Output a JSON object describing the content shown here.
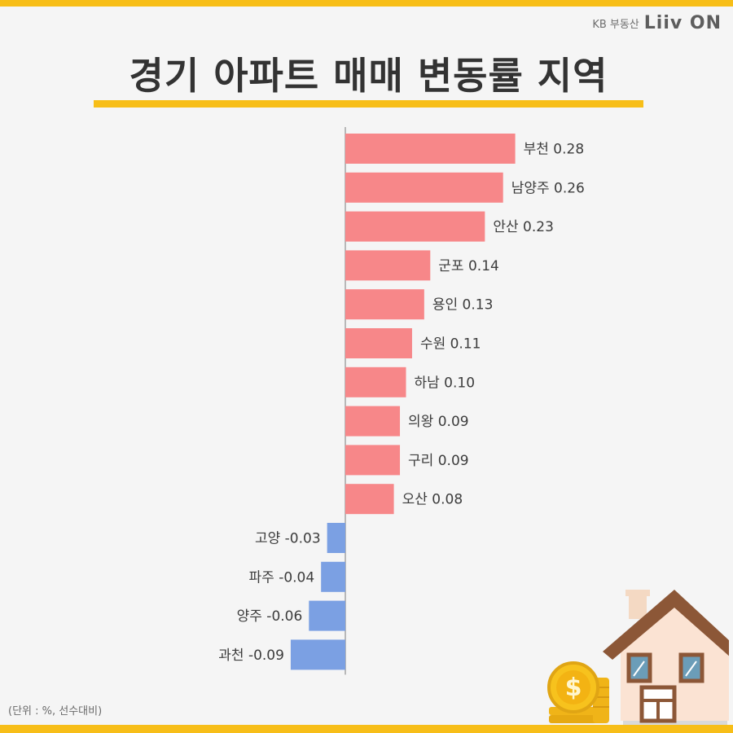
{
  "brand": {
    "small": "KB 부동산",
    "logo": "Liiv ON"
  },
  "title": "경기 아파트 매매 변동률 지역",
  "note": "(단위 : %, 선수대비)",
  "chart_data": {
    "type": "bar",
    "orientation": "horizontal",
    "title": "경기 아파트 매매 변동률 지역",
    "unit": "%",
    "categories": [
      "부천",
      "남양주",
      "안산",
      "군포",
      "용인",
      "수원",
      "하남",
      "의왕",
      "구리",
      "오산",
      "고양",
      "파주",
      "양주",
      "과천"
    ],
    "values": [
      0.28,
      0.26,
      0.23,
      0.14,
      0.13,
      0.11,
      0.1,
      0.09,
      0.09,
      0.08,
      -0.03,
      -0.04,
      -0.06,
      -0.09
    ],
    "labels": [
      "부천 0.28",
      "남양주 0.26",
      "안산 0.23",
      "군포 0.14",
      "용인 0.13",
      "수원 0.11",
      "하남 0.10",
      "의왕 0.09",
      "구리 0.09",
      "오산 0.08",
      "고양 -0.03",
      "파주 -0.04",
      "양주 -0.06",
      "과천 -0.09"
    ],
    "colors": {
      "positive": "#f78789",
      "negative": "#7ba0e3"
    },
    "grid": false,
    "legend": "none"
  }
}
